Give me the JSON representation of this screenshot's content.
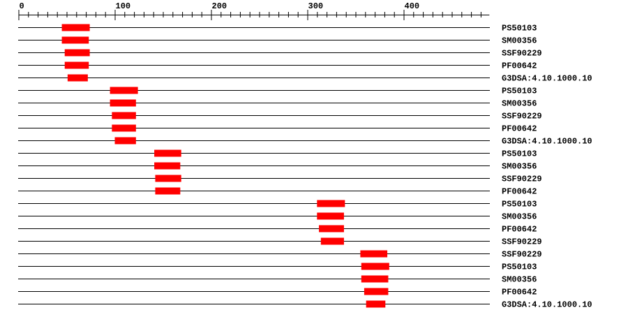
{
  "chart_data": {
    "type": "domain-track",
    "axis": {
      "min": 0,
      "max": 489,
      "major_step": 100,
      "minor_step": 10,
      "tick_labels": [
        "0",
        "100",
        "200",
        "300",
        "400"
      ]
    },
    "colors": {
      "domain": "#ff0000",
      "line": "#000000"
    },
    "tracks": [
      {
        "label": "PS50103",
        "start": 45,
        "end": 74
      },
      {
        "label": "SM00356",
        "start": 45,
        "end": 73
      },
      {
        "label": "SSF90229",
        "start": 48,
        "end": 74
      },
      {
        "label": "PF00642",
        "start": 48,
        "end": 73
      },
      {
        "label": "G3DSA:4.10.1000.10",
        "start": 51,
        "end": 72
      },
      {
        "label": "PS50103",
        "start": 95,
        "end": 124
      },
      {
        "label": "SM00356",
        "start": 95,
        "end": 122
      },
      {
        "label": "SSF90229",
        "start": 97,
        "end": 122
      },
      {
        "label": "PF00642",
        "start": 97,
        "end": 122
      },
      {
        "label": "G3DSA:4.10.1000.10",
        "start": 100,
        "end": 122
      },
      {
        "label": "PS50103",
        "start": 141,
        "end": 169
      },
      {
        "label": "SM00356",
        "start": 141,
        "end": 168
      },
      {
        "label": "SSF90229",
        "start": 142,
        "end": 169
      },
      {
        "label": "PF00642",
        "start": 142,
        "end": 168
      },
      {
        "label": "PS50103",
        "start": 310,
        "end": 339
      },
      {
        "label": "SM00356",
        "start": 310,
        "end": 338
      },
      {
        "label": "PF00642",
        "start": 312,
        "end": 338
      },
      {
        "label": "SSF90229",
        "start": 314,
        "end": 338
      },
      {
        "label": "SSF90229",
        "start": 355,
        "end": 383
      },
      {
        "label": "PS50103",
        "start": 356,
        "end": 385
      },
      {
        "label": "SM00356",
        "start": 356,
        "end": 384
      },
      {
        "label": "PF00642",
        "start": 359,
        "end": 384
      },
      {
        "label": "G3DSA:4.10.1000.10",
        "start": 361,
        "end": 381
      }
    ]
  }
}
